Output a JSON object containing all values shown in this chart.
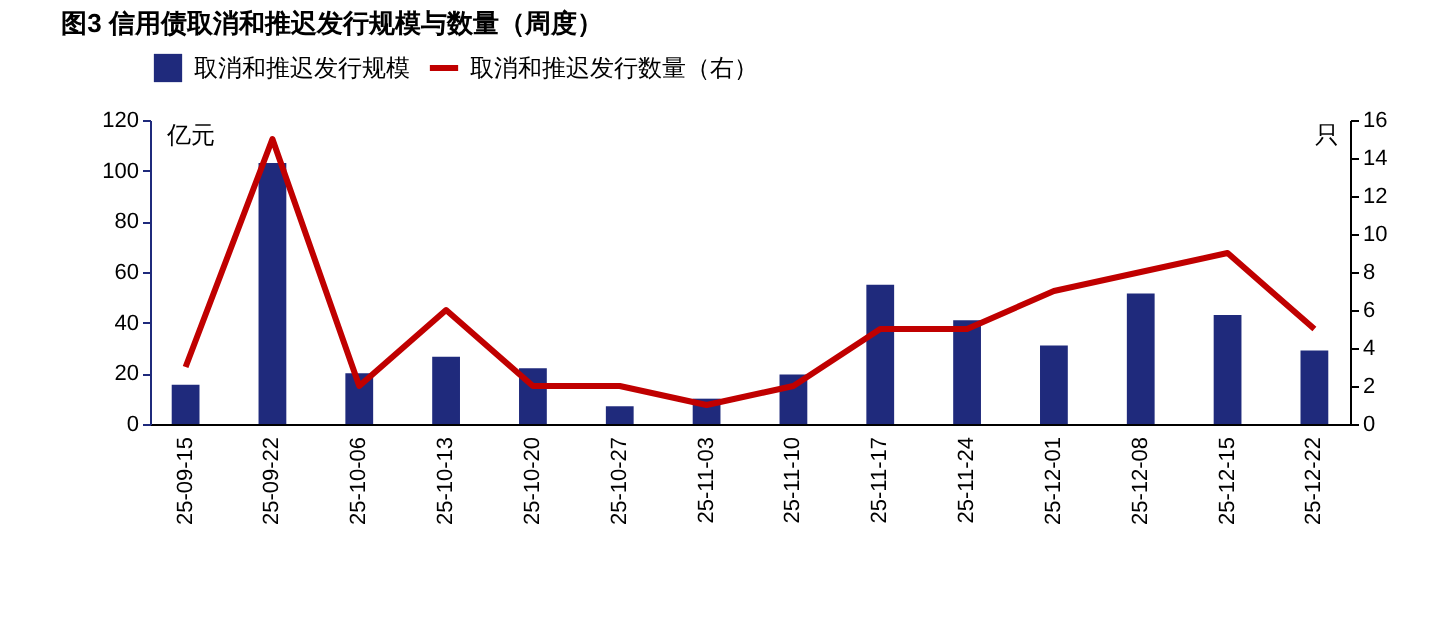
{
  "chart_data": {
    "type": "bar",
    "title": "图3 信用债取消和推迟发行规模与数量（周度）",
    "categories": [
      "25-09-15",
      "25-09-22",
      "25-10-06",
      "25-10-13",
      "25-10-20",
      "25-10-27",
      "25-11-03",
      "25-11-10",
      "25-11-17",
      "25-11-24",
      "25-12-01",
      "25-12-08",
      "25-12-15",
      "25-12-22"
    ],
    "series": [
      {
        "name": "取消和推迟发行规模",
        "color": "#1f2a7c",
        "values": [
          15.5,
          103,
          20,
          26.5,
          22,
          7,
          10,
          19.5,
          55,
          41,
          31,
          51.5,
          43,
          29
        ]
      },
      {
        "name": "取消和推迟发行数量（右）",
        "type": "line",
        "axis": "y2",
        "color": "#c00000",
        "values": [
          3,
          15,
          2,
          6,
          2,
          2,
          1,
          2,
          5,
          5,
          7,
          8,
          9,
          5
        ]
      }
    ],
    "ylabel": "亿元",
    "y2label": "只",
    "ylim": [
      0,
      120
    ],
    "yticks": [
      0,
      20,
      40,
      60,
      80,
      100,
      120
    ],
    "y2lim": [
      0,
      16
    ],
    "y2ticks": [
      0,
      2,
      4,
      6,
      8,
      10,
      12,
      14,
      16
    ],
    "grid": false,
    "legend": "top",
    "marker": "none",
    "line_style": "solid"
  }
}
